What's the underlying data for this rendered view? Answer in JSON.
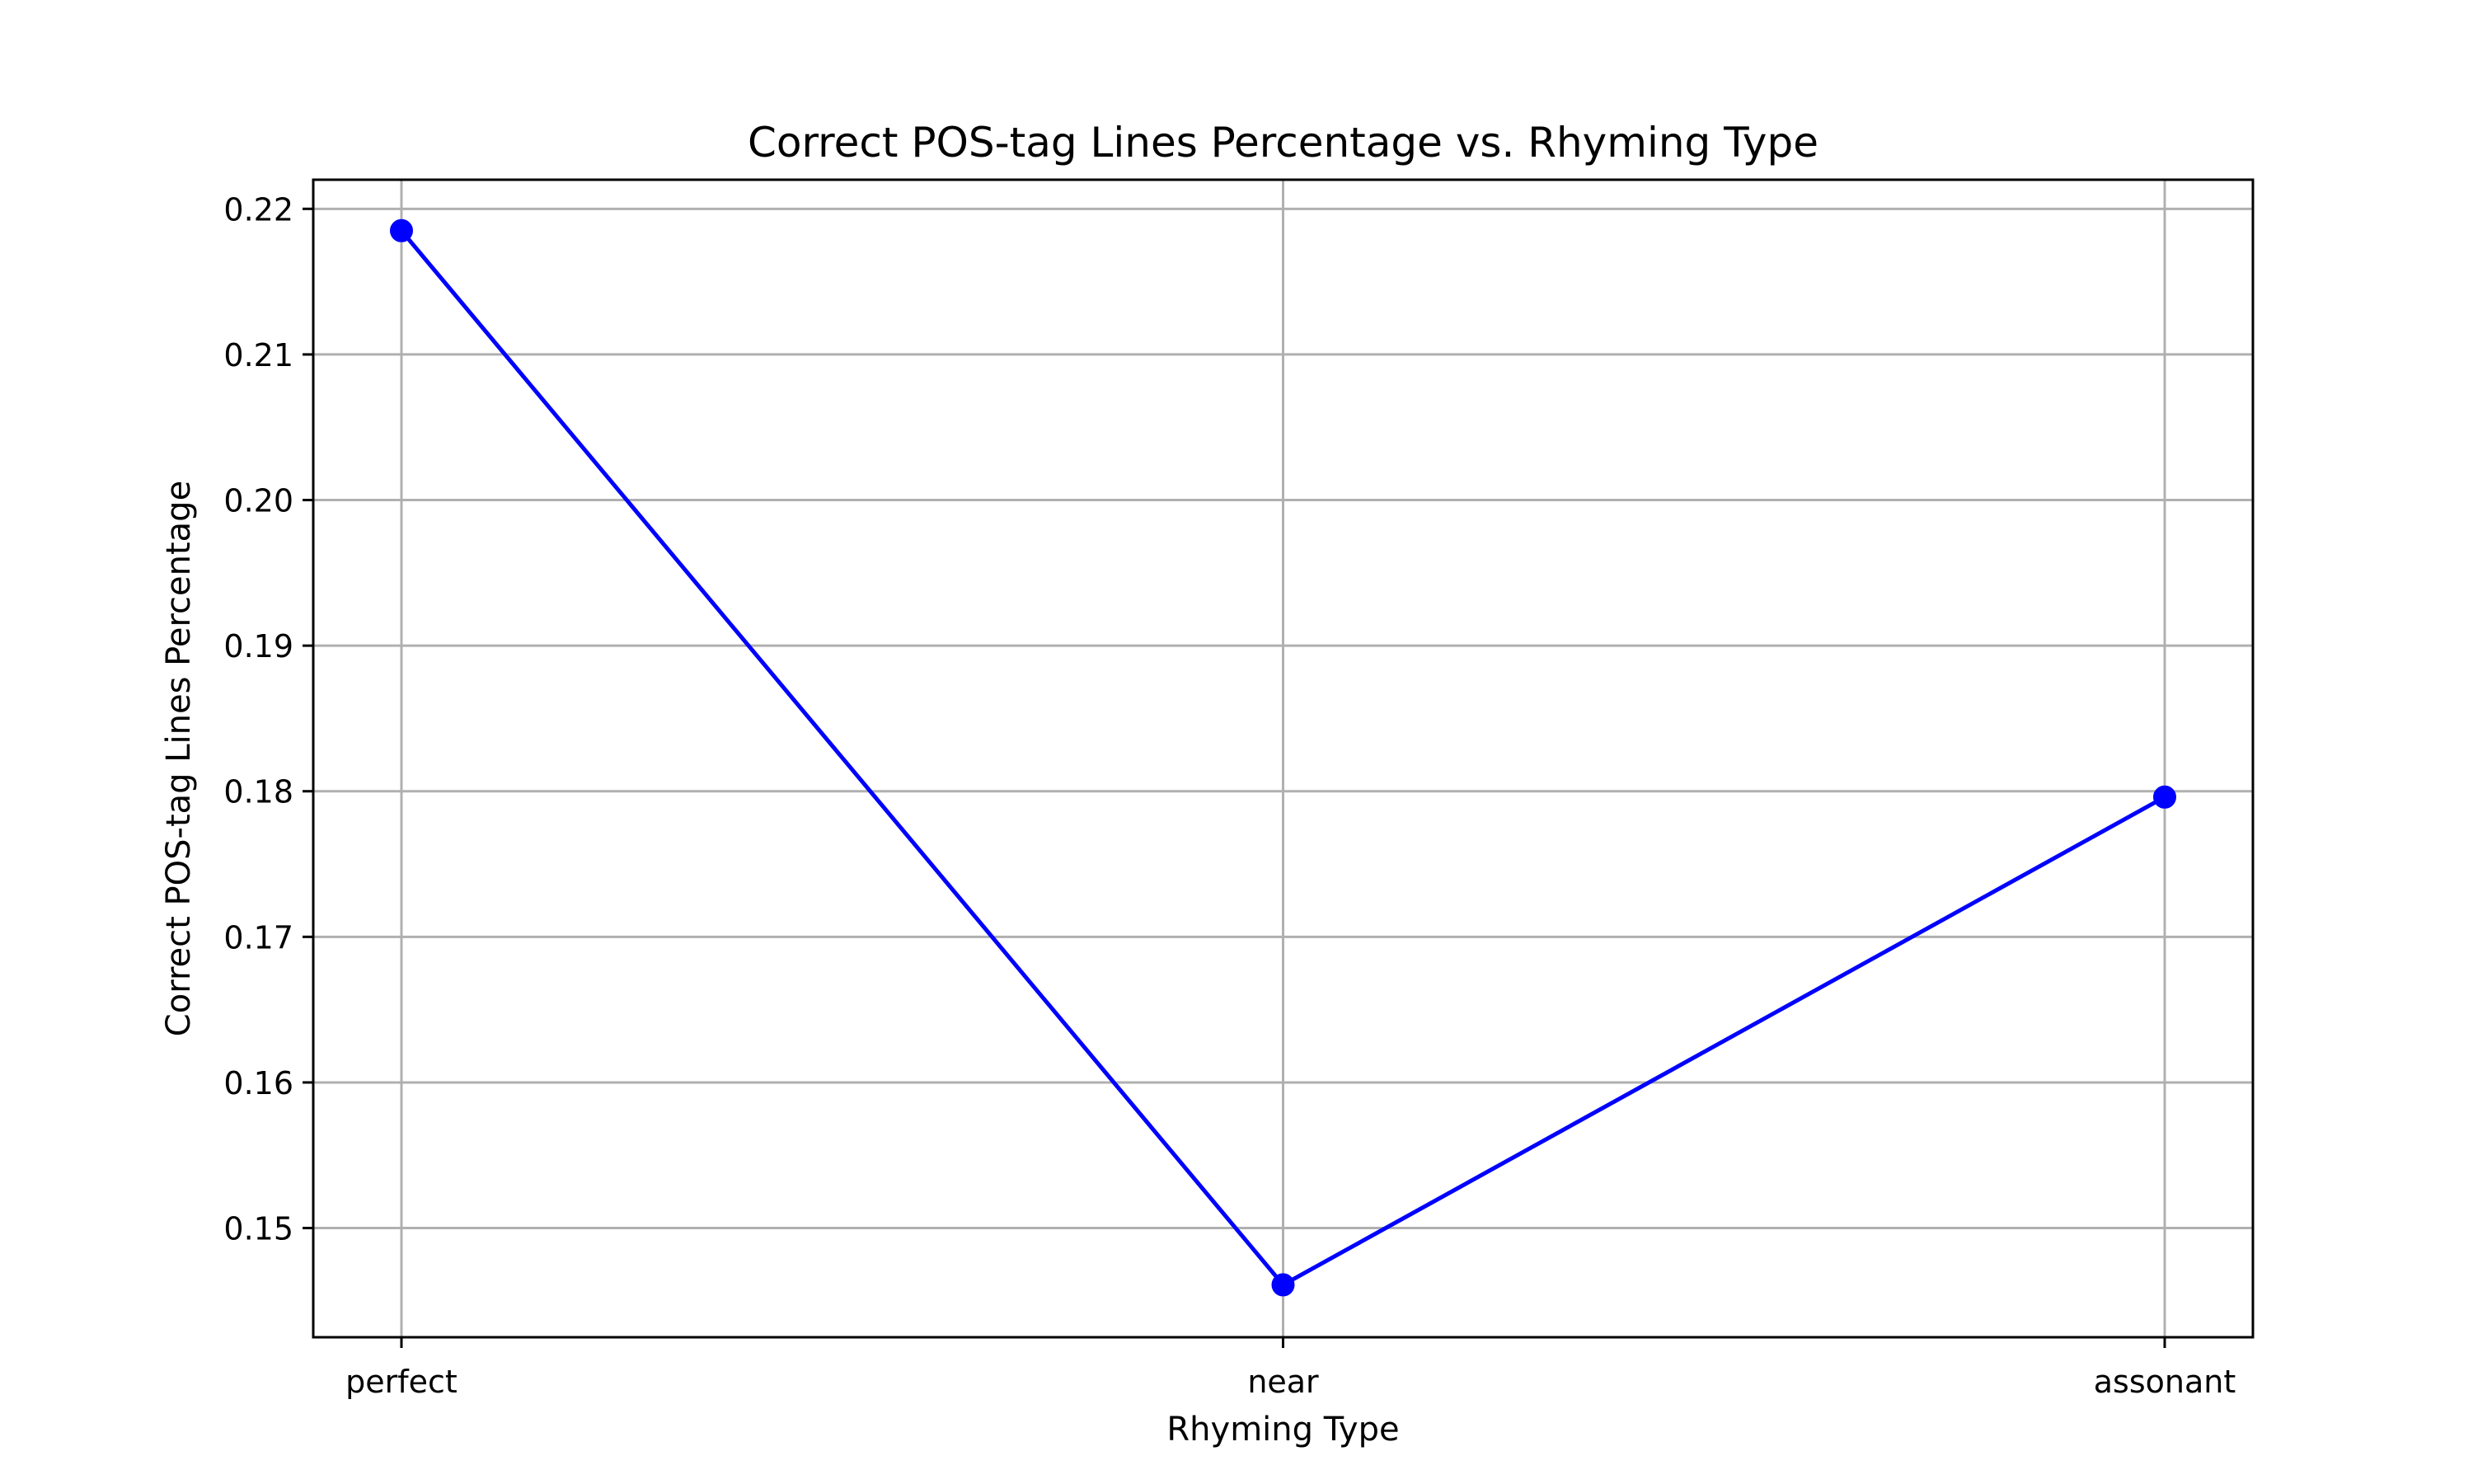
{
  "chart_data": {
    "type": "line",
    "title": "Correct POS-tag Lines Percentage vs. Rhyming Type",
    "xlabel": "Rhyming Type",
    "ylabel": "Correct POS-tag Lines Percentage",
    "categories": [
      "perfect",
      "near",
      "assonant"
    ],
    "series": [
      {
        "values": [
          0.2185,
          0.1461,
          0.1796
        ],
        "color": "#0000ff",
        "marker": "circle"
      }
    ],
    "ylim": [
      0.1425,
      0.222
    ],
    "yticks": [
      0.15,
      0.16,
      0.17,
      0.18,
      0.19,
      0.2,
      0.21,
      0.22
    ],
    "ytick_labels": [
      "0.15",
      "0.16",
      "0.17",
      "0.18",
      "0.19",
      "0.20",
      "0.21",
      "0.22"
    ],
    "grid": true,
    "grid_color": "#b0b0b0",
    "axes_color": "#000000"
  }
}
